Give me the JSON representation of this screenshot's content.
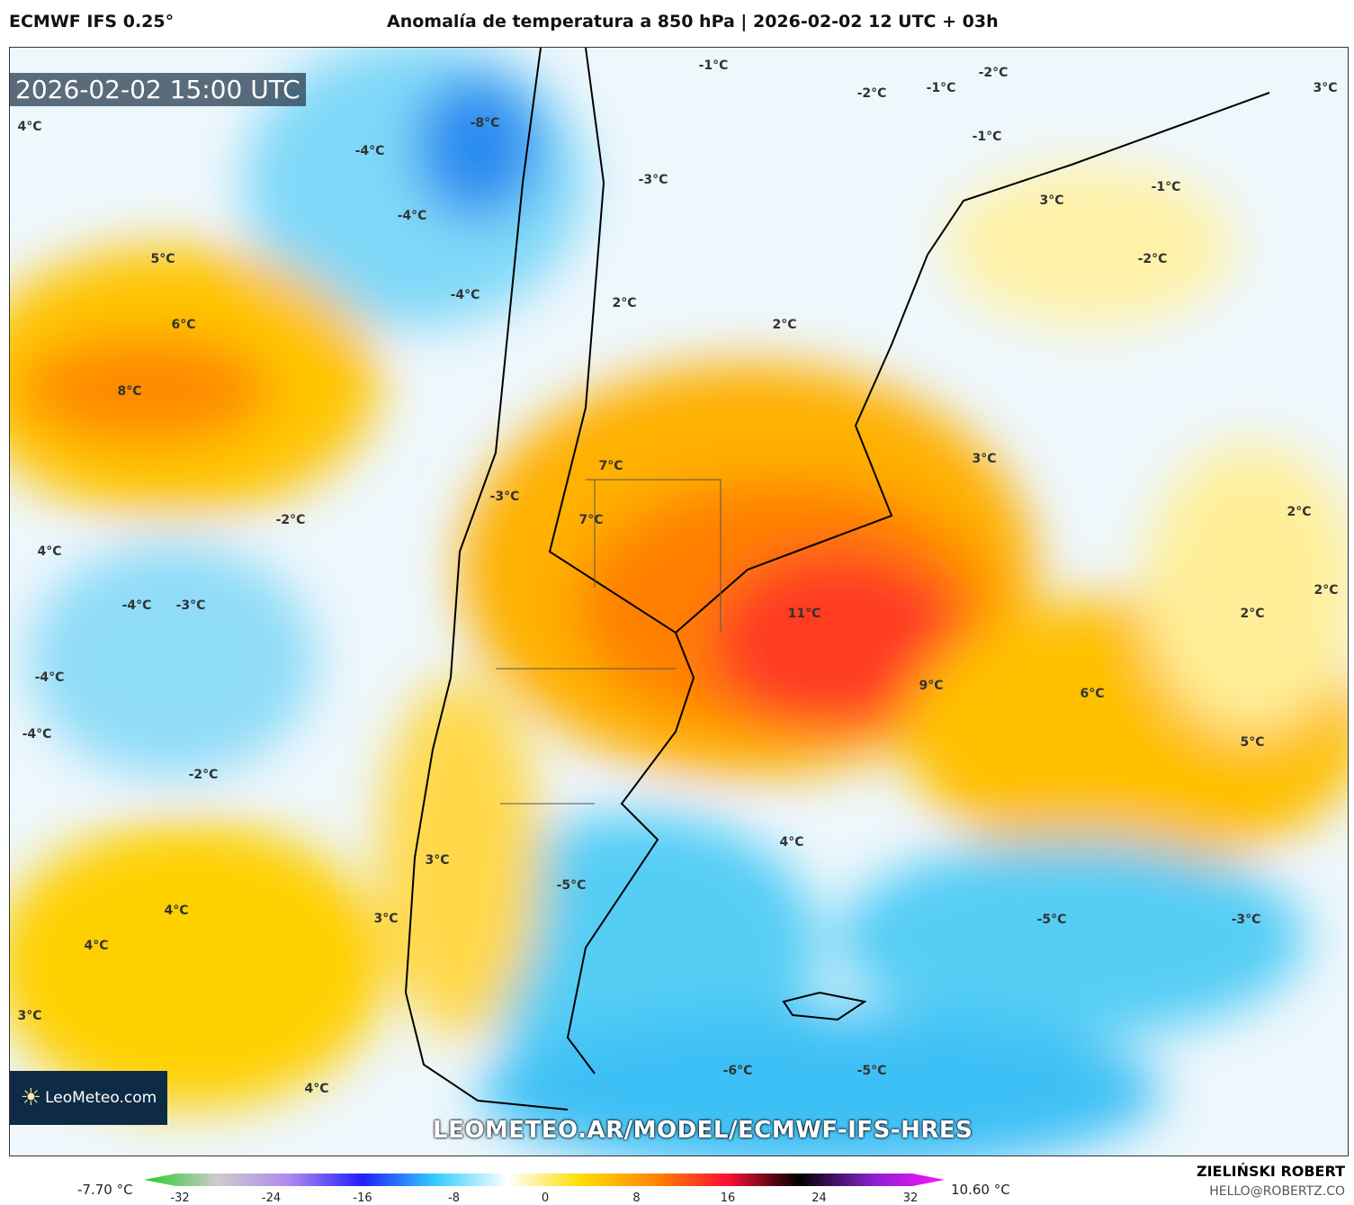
{
  "header": {
    "model": "ECMWF IFS 0.25°",
    "title": "Anomalía de temperatura a 850 hPa | 2026-02-02 12 UTC + 03h"
  },
  "map": {
    "timestamp": "2026-02-02 15:00 UTC",
    "url": "LEOMETEO.AR/MODEL/ECMWF-IFS-HRES",
    "logo": "LeoMeteo.com",
    "labels": [
      "4°C",
      "-1°C",
      "-2°C",
      "3°C",
      "-2°C",
      "-1°C",
      "-8°C",
      "-1°C",
      "-4°C",
      "-3°C",
      "-1°C",
      "3°C",
      "-4°C",
      "-2°C",
      "5°C",
      "-4°C",
      "2°C",
      "6°C",
      "2°C",
      "8°C",
      "3°C",
      "7°C",
      "-3°C",
      "7°C",
      "2°C",
      "-2°C",
      "4°C",
      "2°C",
      "-4°C",
      "-3°C",
      "11°C",
      "2°C",
      "-4°C",
      "9°C",
      "6°C",
      "-4°C",
      "5°C",
      "-2°C",
      "4°C",
      "3°C",
      "-5°C",
      "4°C",
      "-5°C",
      "-3°C",
      "3°C",
      "4°C",
      "3°C",
      "-6°C",
      "-5°C",
      "4°C"
    ]
  },
  "colorbar": {
    "min_label": "-7.70 °C",
    "max_label": "10.60 °C",
    "ticks": [
      "-32",
      "-24",
      "-16",
      "-8",
      "0",
      "8",
      "16",
      "24",
      "32"
    ],
    "range": [
      -32,
      32
    ],
    "colors": [
      "#22cc22",
      "#cccccc",
      "#b088ee",
      "#2020ff",
      "#33ccff",
      "#ffffff",
      "#ffdd00",
      "#ff8800",
      "#ff1133",
      "#000000",
      "#8822cc",
      "#ff11ff"
    ]
  },
  "credits": {
    "author": "ZIELIŃSKI ROBERT",
    "email": "HELLO@ROBERTZ.CO"
  }
}
